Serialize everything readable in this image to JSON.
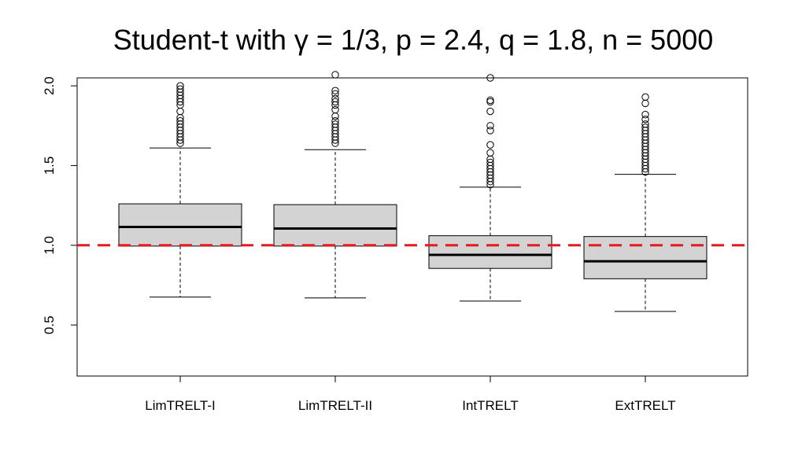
{
  "chart_data": {
    "type": "boxplot",
    "title": "Student-t with γ = 1/3, p = 2.4, q = 1.8, n = 5000",
    "xlabel": "",
    "ylabel": "",
    "ylim": [
      0.18,
      2.05
    ],
    "yticks": [
      "0.5",
      "1.0",
      "1.5",
      "2.0"
    ],
    "grid": false,
    "reference_line": {
      "y": 1.0,
      "color": "#e41a1c",
      "style": "dashed"
    },
    "box_fill": "#d3d3d3",
    "categories": [
      "LimTRELT-I",
      "LimTRELT-II",
      "IntTRELT",
      "ExtTRELT"
    ],
    "boxes": [
      {
        "name": "LimTRELT-I",
        "whisker_low": 0.675,
        "q1": 0.995,
        "median": 1.115,
        "q3": 1.26,
        "whisker_high": 1.61,
        "outliers": [
          1.64,
          1.66,
          1.68,
          1.7,
          1.72,
          1.74,
          1.76,
          1.78,
          1.8,
          1.84,
          1.88,
          1.9,
          1.92,
          1.94,
          1.96,
          1.98,
          2.0
        ]
      },
      {
        "name": "LimTRELT-II",
        "whisker_low": 0.67,
        "q1": 0.995,
        "median": 1.105,
        "q3": 1.255,
        "whisker_high": 1.6,
        "outliers": [
          1.64,
          1.66,
          1.68,
          1.7,
          1.72,
          1.74,
          1.76,
          1.78,
          1.81,
          1.85,
          1.88,
          1.9,
          1.92,
          1.95,
          1.97,
          2.07
        ]
      },
      {
        "name": "IntTRELT",
        "whisker_low": 0.65,
        "q1": 0.855,
        "median": 0.94,
        "q3": 1.06,
        "whisker_high": 1.365,
        "outliers": [
          1.38,
          1.4,
          1.42,
          1.44,
          1.46,
          1.48,
          1.5,
          1.52,
          1.54,
          1.58,
          1.63,
          1.72,
          1.75,
          1.84,
          1.9,
          1.91,
          2.05
        ]
      },
      {
        "name": "ExtTRELT",
        "whisker_low": 0.585,
        "q1": 0.79,
        "median": 0.9,
        "q3": 1.055,
        "whisker_high": 1.445,
        "outliers": [
          1.46,
          1.48,
          1.5,
          1.52,
          1.54,
          1.56,
          1.58,
          1.6,
          1.62,
          1.64,
          1.66,
          1.68,
          1.7,
          1.72,
          1.74,
          1.76,
          1.79,
          1.82,
          1.89,
          1.93
        ]
      }
    ]
  }
}
